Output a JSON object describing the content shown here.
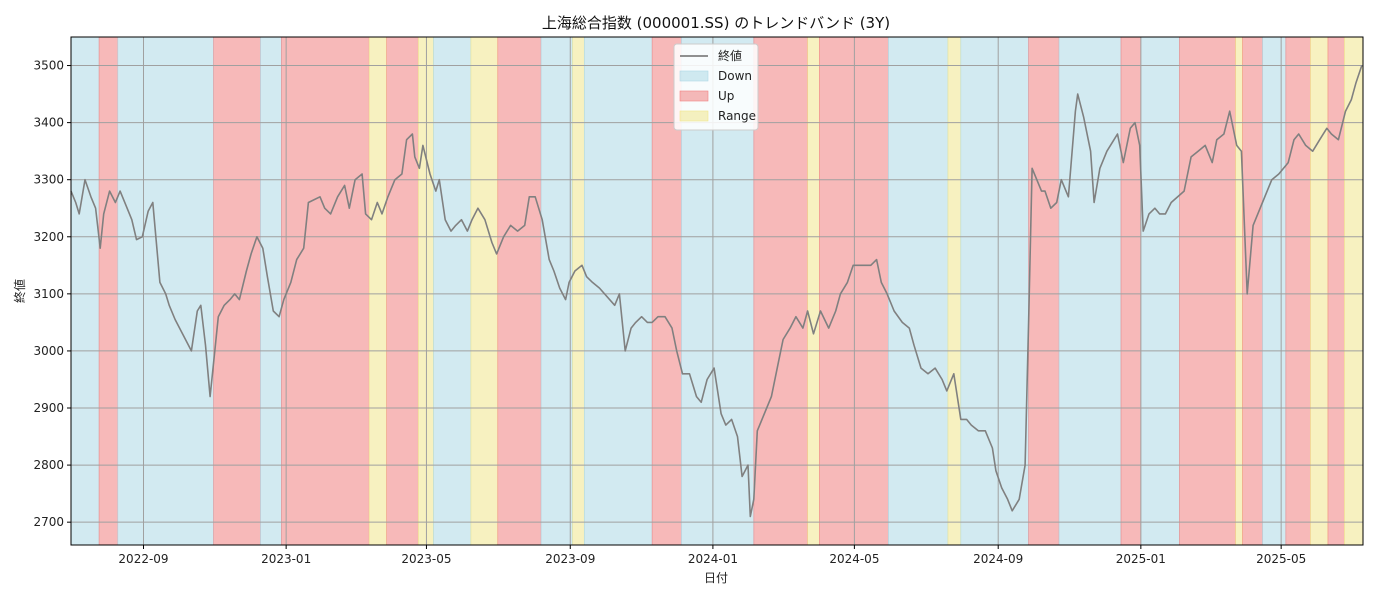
{
  "chart_data": {
    "type": "line",
    "title": "上海総合指数 (000001.SS) のトレンドバンド (3Y)",
    "xlabel": "日付",
    "ylabel": "終値",
    "xlim": [
      "2022-07-01",
      "2025-07-10"
    ],
    "ylim": [
      2660,
      3550
    ],
    "x_ticks": [
      "2022-09-01",
      "2023-01-01",
      "2023-05-01",
      "2023-09-01",
      "2024-01-01",
      "2024-05-01",
      "2024-09-01",
      "2025-01-01",
      "2025-05-01"
    ],
    "x_tick_labels": [
      "2022-09",
      "2023-01",
      "2023-05",
      "2023-09",
      "2024-01",
      "2024-05",
      "2024-09",
      "2025-01",
      "2025-05"
    ],
    "y_ticks": [
      2700,
      2800,
      2900,
      3000,
      3100,
      3200,
      3300,
      3400,
      3500
    ],
    "grid": true,
    "legend_position": "top-center",
    "legend": [
      {
        "label": "終値",
        "kind": "line",
        "color": "#808080"
      },
      {
        "label": "Down",
        "kind": "band",
        "color": "#add8e6"
      },
      {
        "label": "Up",
        "kind": "band",
        "color": "#f08080"
      },
      {
        "label": "Range",
        "kind": "band",
        "color": "#f0e68c"
      }
    ],
    "band_colors": {
      "Down": "#add8e6",
      "Up": "#f08080",
      "Range": "#f0e68c"
    },
    "bands": [
      {
        "start": "2022-07-01",
        "end": "2022-07-25",
        "state": "Down"
      },
      {
        "start": "2022-07-25",
        "end": "2022-08-10",
        "state": "Up"
      },
      {
        "start": "2022-08-10",
        "end": "2022-10-31",
        "state": "Down"
      },
      {
        "start": "2022-10-31",
        "end": "2022-12-10",
        "state": "Up"
      },
      {
        "start": "2022-12-10",
        "end": "2022-12-28",
        "state": "Down"
      },
      {
        "start": "2022-12-28",
        "end": "2023-03-13",
        "state": "Up"
      },
      {
        "start": "2023-03-13",
        "end": "2023-03-28",
        "state": "Range"
      },
      {
        "start": "2023-03-28",
        "end": "2023-04-24",
        "state": "Up"
      },
      {
        "start": "2023-04-24",
        "end": "2023-05-07",
        "state": "Range"
      },
      {
        "start": "2023-05-07",
        "end": "2023-06-08",
        "state": "Down"
      },
      {
        "start": "2023-06-08",
        "end": "2023-07-01",
        "state": "Range"
      },
      {
        "start": "2023-07-01",
        "end": "2023-08-07",
        "state": "Up"
      },
      {
        "start": "2023-08-07",
        "end": "2023-09-03",
        "state": "Down"
      },
      {
        "start": "2023-09-03",
        "end": "2023-09-13",
        "state": "Range"
      },
      {
        "start": "2023-09-13",
        "end": "2023-11-10",
        "state": "Down"
      },
      {
        "start": "2023-11-10",
        "end": "2023-12-05",
        "state": "Up"
      },
      {
        "start": "2023-12-05",
        "end": "2024-02-05",
        "state": "Down"
      },
      {
        "start": "2024-02-05",
        "end": "2024-03-22",
        "state": "Up"
      },
      {
        "start": "2024-03-22",
        "end": "2024-04-01",
        "state": "Range"
      },
      {
        "start": "2024-04-01",
        "end": "2024-05-30",
        "state": "Up"
      },
      {
        "start": "2024-05-30",
        "end": "2024-07-20",
        "state": "Down"
      },
      {
        "start": "2024-07-20",
        "end": "2024-07-31",
        "state": "Range"
      },
      {
        "start": "2024-07-31",
        "end": "2024-09-27",
        "state": "Down"
      },
      {
        "start": "2024-09-27",
        "end": "2024-10-23",
        "state": "Up"
      },
      {
        "start": "2024-10-23",
        "end": "2024-12-15",
        "state": "Down"
      },
      {
        "start": "2024-12-15",
        "end": "2025-01-01",
        "state": "Up"
      },
      {
        "start": "2025-01-01",
        "end": "2025-02-03",
        "state": "Down"
      },
      {
        "start": "2025-02-03",
        "end": "2025-03-23",
        "state": "Up"
      },
      {
        "start": "2025-03-23",
        "end": "2025-03-29",
        "state": "Range"
      },
      {
        "start": "2025-03-29",
        "end": "2025-04-15",
        "state": "Up"
      },
      {
        "start": "2025-04-15",
        "end": "2025-05-05",
        "state": "Down"
      },
      {
        "start": "2025-05-05",
        "end": "2025-05-26",
        "state": "Up"
      },
      {
        "start": "2025-05-26",
        "end": "2025-06-10",
        "state": "Range"
      },
      {
        "start": "2025-06-10",
        "end": "2025-06-24",
        "state": "Up"
      },
      {
        "start": "2025-06-24",
        "end": "2025-07-10",
        "state": "Range"
      }
    ],
    "series": [
      {
        "name": "終値",
        "x": [
          "2022-07-01",
          "2022-07-05",
          "2022-07-08",
          "2022-07-13",
          "2022-07-18",
          "2022-07-22",
          "2022-07-26",
          "2022-07-29",
          "2022-08-03",
          "2022-08-08",
          "2022-08-12",
          "2022-08-17",
          "2022-08-22",
          "2022-08-26",
          "2022-08-31",
          "2022-09-05",
          "2022-09-09",
          "2022-09-15",
          "2022-09-20",
          "2022-09-23",
          "2022-09-28",
          "2022-10-12",
          "2022-10-17",
          "2022-10-20",
          "2022-10-24",
          "2022-10-28",
          "2022-11-01",
          "2022-11-04",
          "2022-11-09",
          "2022-11-14",
          "2022-11-18",
          "2022-11-22",
          "2022-11-28",
          "2022-12-02",
          "2022-12-07",
          "2022-12-12",
          "2022-12-16",
          "2022-12-21",
          "2022-12-26",
          "2022-12-30",
          "2023-01-05",
          "2023-01-10",
          "2023-01-16",
          "2023-01-20",
          "2023-01-30",
          "2023-02-03",
          "2023-02-08",
          "2023-02-14",
          "2023-02-20",
          "2023-02-24",
          "2023-03-01",
          "2023-03-07",
          "2023-03-10",
          "2023-03-15",
          "2023-03-20",
          "2023-03-24",
          "2023-03-29",
          "2023-04-04",
          "2023-04-10",
          "2023-04-14",
          "2023-04-19",
          "2023-04-21",
          "2023-04-25",
          "2023-04-28",
          "2023-05-04",
          "2023-05-09",
          "2023-05-12",
          "2023-05-17",
          "2023-05-22",
          "2023-05-26",
          "2023-05-31",
          "2023-06-05",
          "2023-06-09",
          "2023-06-14",
          "2023-06-20",
          "2023-06-26",
          "2023-06-30",
          "2023-07-06",
          "2023-07-12",
          "2023-07-18",
          "2023-07-24",
          "2023-07-28",
          "2023-08-02",
          "2023-08-08",
          "2023-08-14",
          "2023-08-18",
          "2023-08-23",
          "2023-08-28",
          "2023-08-31",
          "2023-09-05",
          "2023-09-11",
          "2023-09-15",
          "2023-09-20",
          "2023-09-26",
          "2023-10-09",
          "2023-10-13",
          "2023-10-18",
          "2023-10-23",
          "2023-10-27",
          "2023-11-01",
          "2023-11-06",
          "2023-11-10",
          "2023-11-15",
          "2023-11-21",
          "2023-11-27",
          "2023-12-01",
          "2023-12-06",
          "2023-12-12",
          "2023-12-18",
          "2023-12-22",
          "2023-12-27",
          "2024-01-02",
          "2024-01-08",
          "2024-01-12",
          "2024-01-17",
          "2024-01-22",
          "2024-01-26",
          "2024-01-31",
          "2024-02-02",
          "2024-02-05",
          "2024-02-08",
          "2024-02-20",
          "2024-02-26",
          "2024-03-01",
          "2024-03-07",
          "2024-03-12",
          "2024-03-18",
          "2024-03-22",
          "2024-03-27",
          "2024-04-02",
          "2024-04-09",
          "2024-04-15",
          "2024-04-19",
          "2024-04-25",
          "2024-04-30",
          "2024-05-09",
          "2024-05-15",
          "2024-05-20",
          "2024-05-24",
          "2024-05-29",
          "2024-06-04",
          "2024-06-11",
          "2024-06-17",
          "2024-06-21",
          "2024-06-27",
          "2024-07-03",
          "2024-07-09",
          "2024-07-15",
          "2024-07-19",
          "2024-07-25",
          "2024-07-31",
          "2024-08-05",
          "2024-08-09",
          "2024-08-15",
          "2024-08-21",
          "2024-08-27",
          "2024-08-30",
          "2024-09-04",
          "2024-09-09",
          "2024-09-13",
          "2024-09-19",
          "2024-09-24",
          "2024-09-27",
          "2024-09-30",
          "2024-10-08",
          "2024-10-11",
          "2024-10-16",
          "2024-10-21",
          "2024-10-25",
          "2024-10-31",
          "2024-11-06",
          "2024-11-08",
          "2024-11-13",
          "2024-11-19",
          "2024-11-22",
          "2024-11-27",
          "2024-12-03",
          "2024-12-09",
          "2024-12-12",
          "2024-12-17",
          "2024-12-23",
          "2024-12-27",
          "2024-12-31",
          "2025-01-03",
          "2025-01-08",
          "2025-01-13",
          "2025-01-17",
          "2025-01-22",
          "2025-01-27",
          "2025-02-07",
          "2025-02-13",
          "2025-02-19",
          "2025-02-25",
          "2025-03-03",
          "2025-03-07",
          "2025-03-13",
          "2025-03-18",
          "2025-03-24",
          "2025-03-28",
          "2025-04-02",
          "2025-04-07",
          "2025-04-11",
          "2025-04-17",
          "2025-04-23",
          "2025-04-29",
          "2025-05-07",
          "2025-05-12",
          "2025-05-16",
          "2025-05-22",
          "2025-05-28",
          "2025-06-03",
          "2025-06-09",
          "2025-06-13",
          "2025-06-19",
          "2025-06-25",
          "2025-06-30",
          "2025-07-04",
          "2025-07-09"
        ],
        "values": [
          3280,
          3260,
          3240,
          3300,
          3270,
          3250,
          3180,
          3240,
          3280,
          3260,
          3280,
          3255,
          3230,
          3195,
          3200,
          3245,
          3260,
          3120,
          3100,
          3080,
          3055,
          3000,
          3070,
          3080,
          3010,
          2920,
          3000,
          3060,
          3080,
          3090,
          3100,
          3090,
          3140,
          3170,
          3200,
          3180,
          3130,
          3070,
          3060,
          3090,
          3120,
          3160,
          3180,
          3260,
          3270,
          3250,
          3240,
          3270,
          3290,
          3250,
          3300,
          3310,
          3240,
          3230,
          3260,
          3240,
          3270,
          3300,
          3310,
          3370,
          3380,
          3340,
          3320,
          3360,
          3310,
          3280,
          3300,
          3230,
          3210,
          3220,
          3230,
          3210,
          3230,
          3250,
          3230,
          3190,
          3170,
          3200,
          3220,
          3210,
          3220,
          3270,
          3270,
          3230,
          3160,
          3140,
          3110,
          3090,
          3120,
          3140,
          3150,
          3130,
          3120,
          3110,
          3080,
          3100,
          3000,
          3040,
          3050,
          3060,
          3050,
          3050,
          3060,
          3060,
          3040,
          3000,
          2960,
          2960,
          2920,
          2910,
          2950,
          2970,
          2890,
          2870,
          2880,
          2850,
          2780,
          2800,
          2710,
          2740,
          2860,
          2920,
          2980,
          3020,
          3040,
          3060,
          3040,
          3070,
          3030,
          3070,
          3040,
          3070,
          3100,
          3120,
          3150,
          3150,
          3150,
          3160,
          3120,
          3100,
          3070,
          3050,
          3040,
          3010,
          2970,
          2960,
          2970,
          2950,
          2930,
          2960,
          2880,
          2880,
          2870,
          2860,
          2860,
          2830,
          2790,
          2760,
          2740,
          2720,
          2740,
          2800,
          3050,
          3320,
          3280,
          3280,
          3250,
          3260,
          3300,
          3270,
          3420,
          3450,
          3410,
          3350,
          3260,
          3320,
          3350,
          3370,
          3380,
          3330,
          3390,
          3400,
          3360,
          3210,
          3240,
          3250,
          3240,
          3240,
          3260,
          3280,
          3340,
          3350,
          3360,
          3330,
          3370,
          3380,
          3420,
          3360,
          3350,
          3100,
          3220,
          3240,
          3270,
          3300,
          3310,
          3330,
          3370,
          3380,
          3360,
          3350,
          3370,
          3390,
          3380,
          3370,
          3420,
          3440,
          3470,
          3500
        ],
        "color": "#808080"
      }
    ]
  }
}
